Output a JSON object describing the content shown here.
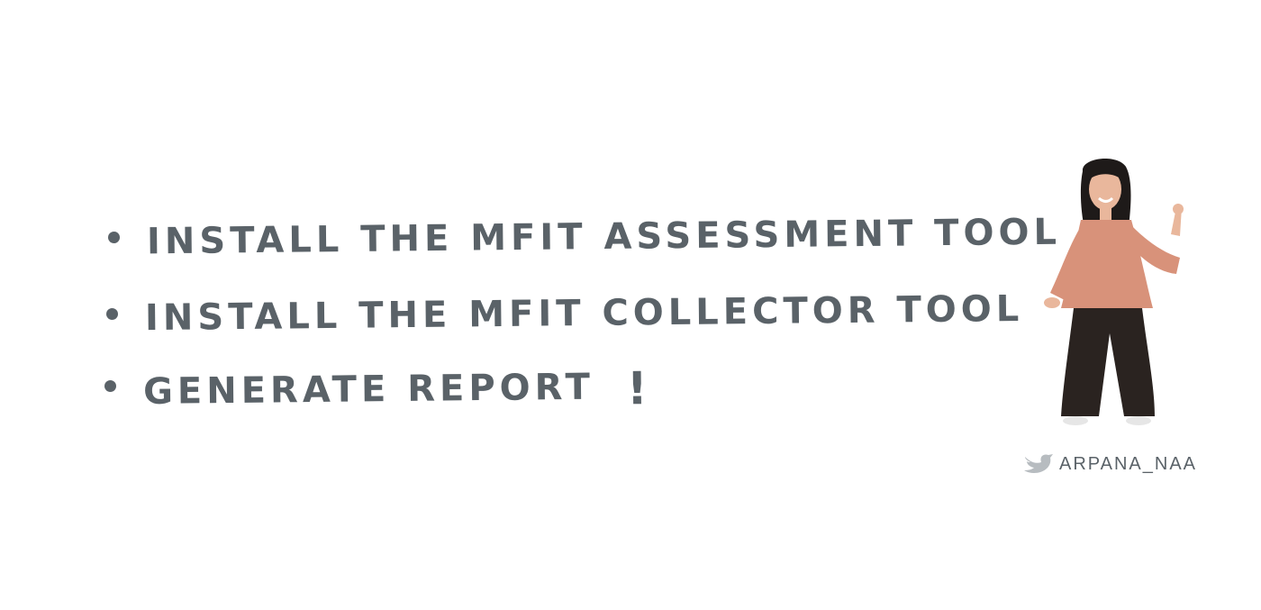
{
  "colors": {
    "ink": "#5a6268",
    "shirt": "#d8927a",
    "pants": "#2a2320",
    "hair": "#1e1a19",
    "skin": "#e9b79c",
    "bird": "#b7bcc0"
  },
  "bullets": [
    {
      "text": "INSTALL THE MFIT ASSESSMENT TOOL"
    },
    {
      "text": "INSTALL THE MFIT COLLECTOR TOOL"
    },
    {
      "text": "GENERATE REPORT",
      "suffix": "!"
    }
  ],
  "credit": {
    "icon": "bird-icon",
    "handle": "ARPANA_NAA"
  }
}
